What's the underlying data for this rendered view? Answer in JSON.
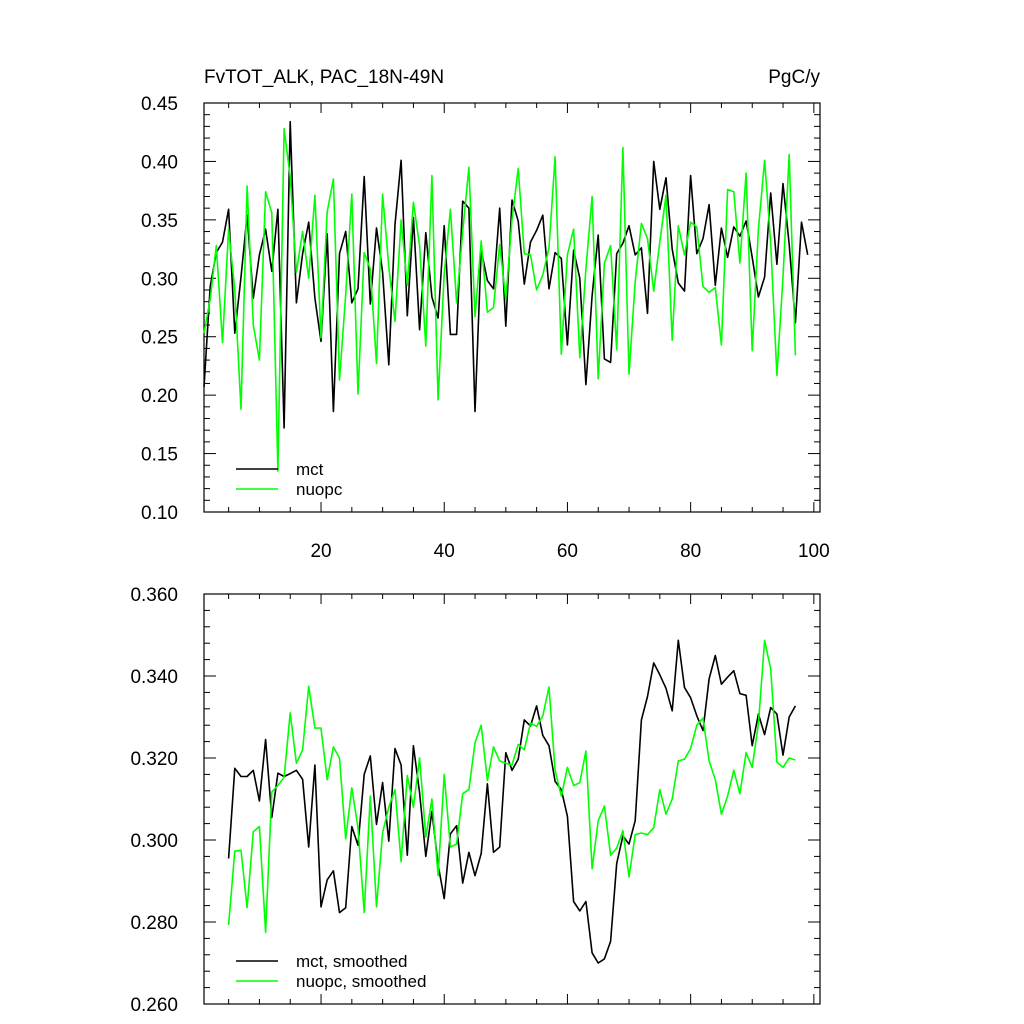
{
  "header": {
    "title": "FvTOT_ALK, PAC_18N-49N",
    "units": "PgC/y"
  },
  "chart_data": [
    {
      "type": "line",
      "title": "FvTOT_ALK, PAC_18N-49N",
      "units_label": "PgC/y",
      "xlim": [
        1,
        101
      ],
      "ylim": [
        0.1,
        0.45
      ],
      "xticks": [
        20,
        40,
        60,
        80,
        100
      ],
      "yticks": [
        0.1,
        0.15,
        0.2,
        0.25,
        0.3,
        0.35,
        0.4,
        0.45
      ],
      "ytick_labels": [
        "0.10",
        "0.15",
        "0.20",
        "0.25",
        "0.30",
        "0.35",
        "0.40",
        "0.45"
      ],
      "xtick_labels": [
        "20",
        "40",
        "60",
        "80",
        "100"
      ],
      "legend_position": "bottom-left",
      "grid": false,
      "x_start": 1,
      "series": [
        {
          "name": "mct",
          "color": "#000000",
          "values": [
            0.207,
            0.293,
            0.322,
            0.331,
            0.359,
            0.253,
            0.301,
            0.354,
            0.283,
            0.32,
            0.342,
            0.306,
            0.359,
            0.172,
            0.434,
            0.279,
            0.321,
            0.348,
            0.283,
            0.246,
            0.338,
            0.186,
            0.321,
            0.34,
            0.279,
            0.291,
            0.387,
            0.278,
            0.343,
            0.305,
            0.226,
            0.346,
            0.401,
            0.268,
            0.352,
            0.256,
            0.339,
            0.284,
            0.266,
            0.345,
            0.252,
            0.252,
            0.366,
            0.36,
            0.186,
            0.324,
            0.298,
            0.291,
            0.36,
            0.259,
            0.367,
            0.349,
            0.295,
            0.331,
            0.341,
            0.354,
            0.291,
            0.322,
            0.317,
            0.243,
            0.324,
            0.3,
            0.209,
            0.285,
            0.337,
            0.231,
            0.228,
            0.321,
            0.33,
            0.345,
            0.32,
            0.326,
            0.27,
            0.4,
            0.359,
            0.386,
            0.325,
            0.296,
            0.289,
            0.388,
            0.321,
            0.334,
            0.363,
            0.294,
            0.343,
            0.318,
            0.344,
            0.336,
            0.349,
            0.318,
            0.284,
            0.301,
            0.373,
            0.312,
            0.381,
            0.329,
            0.262,
            0.348,
            0.32
          ]
        },
        {
          "name": "nuopc",
          "color": "#00ff00",
          "values": [
            0.253,
            0.282,
            0.328,
            0.245,
            0.342,
            0.29,
            0.188,
            0.379,
            0.26,
            0.23,
            0.374,
            0.356,
            0.135,
            0.428,
            0.387,
            0.305,
            0.34,
            0.3,
            0.371,
            0.249,
            0.357,
            0.385,
            0.213,
            0.286,
            0.372,
            0.201,
            0.322,
            0.308,
            0.227,
            0.372,
            0.31,
            0.263,
            0.35,
            0.294,
            0.365,
            0.328,
            0.242,
            0.388,
            0.196,
            0.304,
            0.359,
            0.279,
            0.34,
            0.395,
            0.267,
            0.332,
            0.271,
            0.275,
            0.329,
            0.282,
            0.35,
            0.394,
            0.321,
            0.32,
            0.29,
            0.303,
            0.326,
            0.404,
            0.235,
            0.32,
            0.342,
            0.232,
            0.308,
            0.37,
            0.214,
            0.313,
            0.328,
            0.239,
            0.412,
            0.218,
            0.297,
            0.347,
            0.334,
            0.289,
            0.331,
            0.371,
            0.247,
            0.345,
            0.32,
            0.348,
            0.344,
            0.293,
            0.288,
            0.292,
            0.243,
            0.376,
            0.374,
            0.313,
            0.39,
            0.238,
            0.342,
            0.401,
            0.33,
            0.217,
            0.301,
            0.406,
            0.234
          ]
        }
      ]
    },
    {
      "type": "line",
      "xlim": [
        1,
        101
      ],
      "ylim": [
        0.26,
        0.36
      ],
      "xticks": [
        20,
        40,
        60,
        80,
        100
      ],
      "yticks": [
        0.26,
        0.28,
        0.3,
        0.32,
        0.34,
        0.36
      ],
      "ytick_labels": [
        "0.260",
        "0.280",
        "0.300",
        "0.320",
        "0.340",
        "0.360"
      ],
      "legend_position": "bottom-left",
      "grid": false,
      "x_start": 5,
      "series": [
        {
          "name": "mct, smoothed",
          "color": "#000000",
          "values": [
            0.2955,
            0.3175,
            0.3155,
            0.3155,
            0.317,
            0.3095,
            0.3245,
            0.3055,
            0.3163,
            0.3155,
            0.3162,
            0.317,
            0.3148,
            0.2983,
            0.3183,
            0.2837,
            0.2903,
            0.2925,
            0.2823,
            0.2835,
            0.3033,
            0.2987,
            0.316,
            0.3205,
            0.3038,
            0.314,
            0.2997,
            0.3223,
            0.3183,
            0.2963,
            0.323,
            0.3115,
            0.296,
            0.307,
            0.294,
            0.2857,
            0.3015,
            0.3035,
            0.2895,
            0.297,
            0.2913,
            0.2967,
            0.3137,
            0.297,
            0.2983,
            0.3213,
            0.317,
            0.3197,
            0.3293,
            0.3278,
            0.3327,
            0.3255,
            0.323,
            0.3143,
            0.3123,
            0.3058,
            0.285,
            0.2827,
            0.285,
            0.2725,
            0.27,
            0.271,
            0.2753,
            0.2943,
            0.301,
            0.299,
            0.3047,
            0.3293,
            0.335,
            0.3432,
            0.3403,
            0.337,
            0.3315,
            0.3487,
            0.3372,
            0.3347,
            0.3303,
            0.3267,
            0.3393,
            0.345,
            0.338,
            0.3397,
            0.3413,
            0.3357,
            0.3353,
            0.323,
            0.3307,
            0.3257,
            0.3323,
            0.3307,
            0.3207,
            0.33,
            0.3327
          ]
        },
        {
          "name": "nuopc, smoothed",
          "color": "#00ff00",
          "values": [
            0.2793,
            0.2973,
            0.2975,
            0.2835,
            0.302,
            0.3033,
            0.2775,
            0.3117,
            0.3133,
            0.3153,
            0.331,
            0.3187,
            0.322,
            0.3375,
            0.3273,
            0.3273,
            0.3147,
            0.3227,
            0.32,
            0.3003,
            0.3127,
            0.303,
            0.2823,
            0.3107,
            0.2837,
            0.3018,
            0.308,
            0.3123,
            0.2947,
            0.3157,
            0.308,
            0.32,
            0.3007,
            0.31,
            0.2913,
            0.316,
            0.2983,
            0.299,
            0.3113,
            0.3123,
            0.3237,
            0.328,
            0.3145,
            0.3227,
            0.3193,
            0.3187,
            0.3183,
            0.3233,
            0.322,
            0.3285,
            0.3277,
            0.3303,
            0.3373,
            0.317,
            0.3107,
            0.3177,
            0.3133,
            0.314,
            0.3217,
            0.293,
            0.3047,
            0.3083,
            0.2963,
            0.298,
            0.3023,
            0.291,
            0.3013,
            0.3017,
            0.3013,
            0.303,
            0.3123,
            0.3063,
            0.31,
            0.3193,
            0.3197,
            0.3223,
            0.328,
            0.3297,
            0.3193,
            0.3147,
            0.3063,
            0.3107,
            0.317,
            0.3113,
            0.3213,
            0.3177,
            0.3283,
            0.3487,
            0.3417,
            0.319,
            0.3177,
            0.32,
            0.3195
          ]
        }
      ]
    }
  ]
}
